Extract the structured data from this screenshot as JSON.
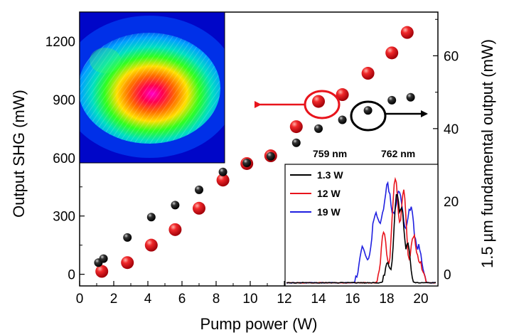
{
  "chart_data": {
    "type": "scatter",
    "xlabel": "Pump power (W)",
    "ylabel_left": "Output SHG (mW)",
    "ylabel_right": "1.5 µm fundamental output (mW)",
    "xlim": [
      0,
      21
    ],
    "ylim_left": [
      -60,
      1350
    ],
    "ylim_right": [
      -3.2,
      72
    ],
    "xticks": [
      0,
      2,
      4,
      6,
      8,
      10,
      12,
      14,
      16,
      18,
      20
    ],
    "yticks_left": [
      0,
      300,
      600,
      900,
      1200
    ],
    "yticks_right": [
      0,
      20,
      40,
      60
    ],
    "series": [
      {
        "axis": "left",
        "color": "#e8141c",
        "x": [
          1.3,
          2.8,
          4.2,
          5.6,
          7.0,
          8.4,
          9.8,
          11.2,
          12.7,
          14.0,
          15.4,
          16.9,
          18.3,
          19.2
        ],
        "y": [
          15,
          60,
          150,
          230,
          340,
          485,
          570,
          610,
          760,
          890,
          925,
          1035,
          1140,
          1245
        ]
      },
      {
        "axis": "right",
        "color": "#111111",
        "x": [
          1.1,
          1.4,
          2.8,
          4.2,
          5.6,
          7.0,
          8.4,
          9.8,
          11.2,
          12.7,
          14.0,
          15.4,
          16.9,
          18.3,
          19.4
        ],
        "y": [
          3.2,
          4.3,
          10.1,
          15.7,
          19.0,
          23.2,
          28.1,
          30.6,
          32.4,
          36.1,
          40.0,
          42.4,
          45.0,
          47.8,
          48.6
        ]
      }
    ],
    "annotations": {
      "label_759": "759 nm",
      "label_762": "762 nm"
    },
    "inset_spectrum": {
      "type": "line",
      "legend": [
        {
          "name": "1.3 W",
          "color": "#000000"
        },
        {
          "name": "12 W",
          "color": "#e8141c"
        },
        {
          "name": "19 W",
          "color": "#1f1fe0"
        }
      ]
    },
    "inset_image": "beam-profile"
  }
}
